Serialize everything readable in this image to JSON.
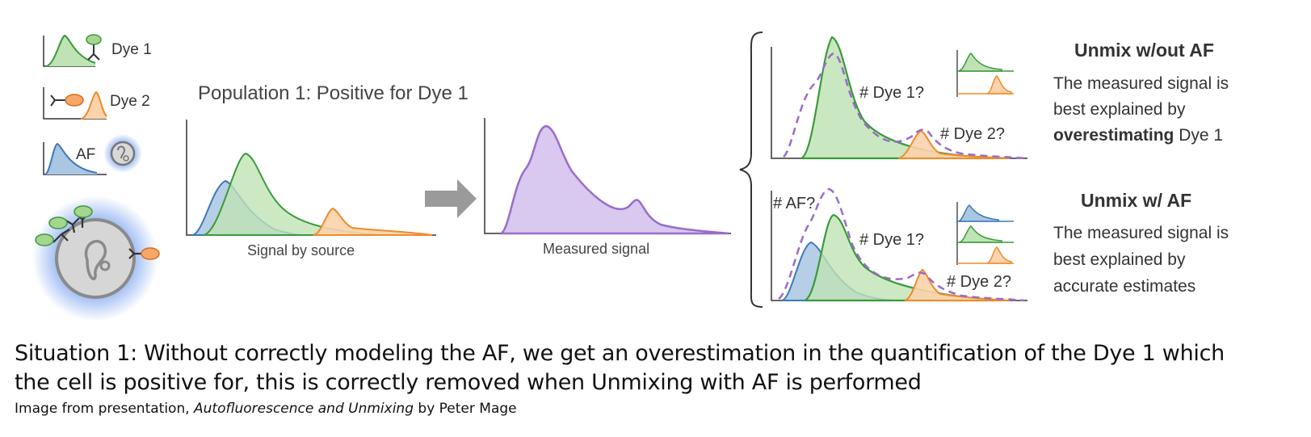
{
  "legend": {
    "dye1": "Dye 1",
    "dye2": "Dye 2",
    "af": "AF"
  },
  "population_title": "Population 1: Positive for Dye 1",
  "plot_source_label": "Signal by source",
  "plot_measured_label": "Measured signal",
  "unmix_without": {
    "heading": "Unmix w/out AF",
    "line1": "The measured signal is",
    "line2": "best explained by",
    "line3_bold": "overestimating",
    "line3_rest": " Dye 1",
    "annot_dye1": "# Dye 1?",
    "annot_dye2": "# Dye 2?"
  },
  "unmix_with": {
    "heading": "Unmix w/ AF",
    "line1": "The measured signal is",
    "line2": "best explained by",
    "line3": "accurate estimates",
    "annot_af": "# AF?",
    "annot_dye1": "# Dye 1?",
    "annot_dye2": "# Dye 2?"
  },
  "caption": {
    "line1": "Situation 1: Without correctly modeling the AF, we get an overestimation in the quantification of the Dye 1 which",
    "line2": "the cell is positive for, this is correctly removed when Unmixing with AF is performed",
    "credit_prefix": "Image from presentation, ",
    "credit_title": "Autofluorescence and Unmixing",
    "credit_suffix": " by Peter Mage"
  },
  "colors": {
    "green": "#3a9a3a",
    "green_fill": "#bfe3b5",
    "orange": "#f08a2a",
    "orange_fill": "#fbd3ac",
    "blue": "#3d7ab8",
    "blue_fill": "#a9c6e2",
    "purple": "#9a6cc9",
    "purple_fill": "#d9c8ef",
    "axis": "#333333",
    "arrow": "#9a9a9a"
  }
}
